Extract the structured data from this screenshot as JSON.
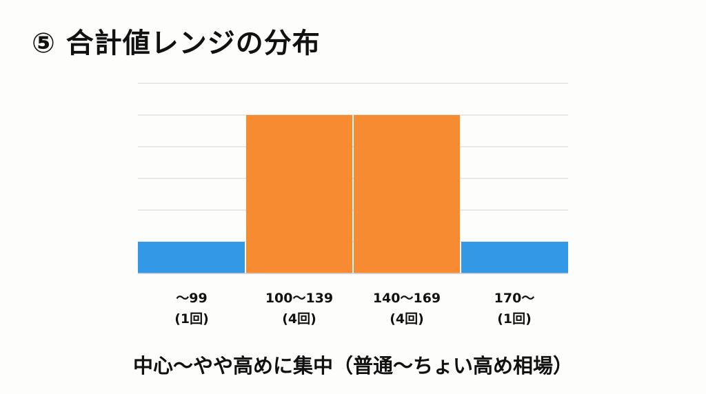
{
  "title": "⑤ 合計値レンジの分布",
  "caption": "中心〜やや高めに集中（普通〜ちょい高め相場）",
  "chart_data": {
    "type": "bar",
    "categories": [
      "〜99",
      "100〜139",
      "140〜169",
      "170〜"
    ],
    "count_labels": [
      "(1回)",
      "(4回)",
      "(4回)",
      "(1回)"
    ],
    "values": [
      1,
      4,
      4,
      1
    ],
    "colors": [
      "#3399e6",
      "#f78b32",
      "#f78b32",
      "#3399e6"
    ],
    "ylim": [
      0.25,
      4.75
    ],
    "grid": true,
    "title": "",
    "xlabel": "",
    "ylabel": ""
  }
}
